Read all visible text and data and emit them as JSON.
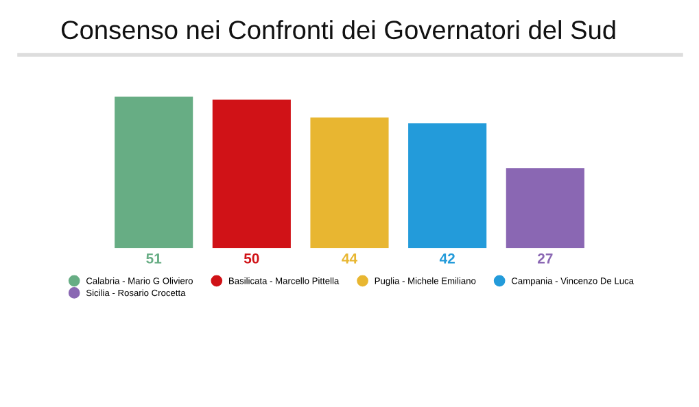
{
  "chart_data": {
    "type": "bar",
    "title": "Consenso nei Confronti dei Governatori del Sud",
    "categories": [
      null,
      null,
      null,
      null,
      null
    ],
    "stacked": true,
    "series": [
      {
        "name": "Calabria - Mario G Oliviero",
        "color": "#67ad84",
        "values": [
          51,
          null,
          null,
          null,
          null
        ]
      },
      {
        "name": "Basilicata - Marcello Pittella",
        "color": "#d01217",
        "values": [
          null,
          50,
          null,
          null,
          null
        ]
      },
      {
        "name": "Puglia - Michele Emiliano",
        "color": "#e8b631",
        "values": [
          null,
          null,
          44,
          null,
          null
        ]
      },
      {
        "name": "Campania - Vincenzo De Luca",
        "color": "#239bda",
        "values": [
          null,
          null,
          null,
          42,
          null
        ]
      },
      {
        "name": "Sicilia - Rosario Crocetta",
        "color": "#8a67b3",
        "values": [
          null,
          null,
          null,
          null,
          27
        ]
      }
    ],
    "data_labels": true,
    "legend": "bottom",
    "tick_labels": false
  }
}
